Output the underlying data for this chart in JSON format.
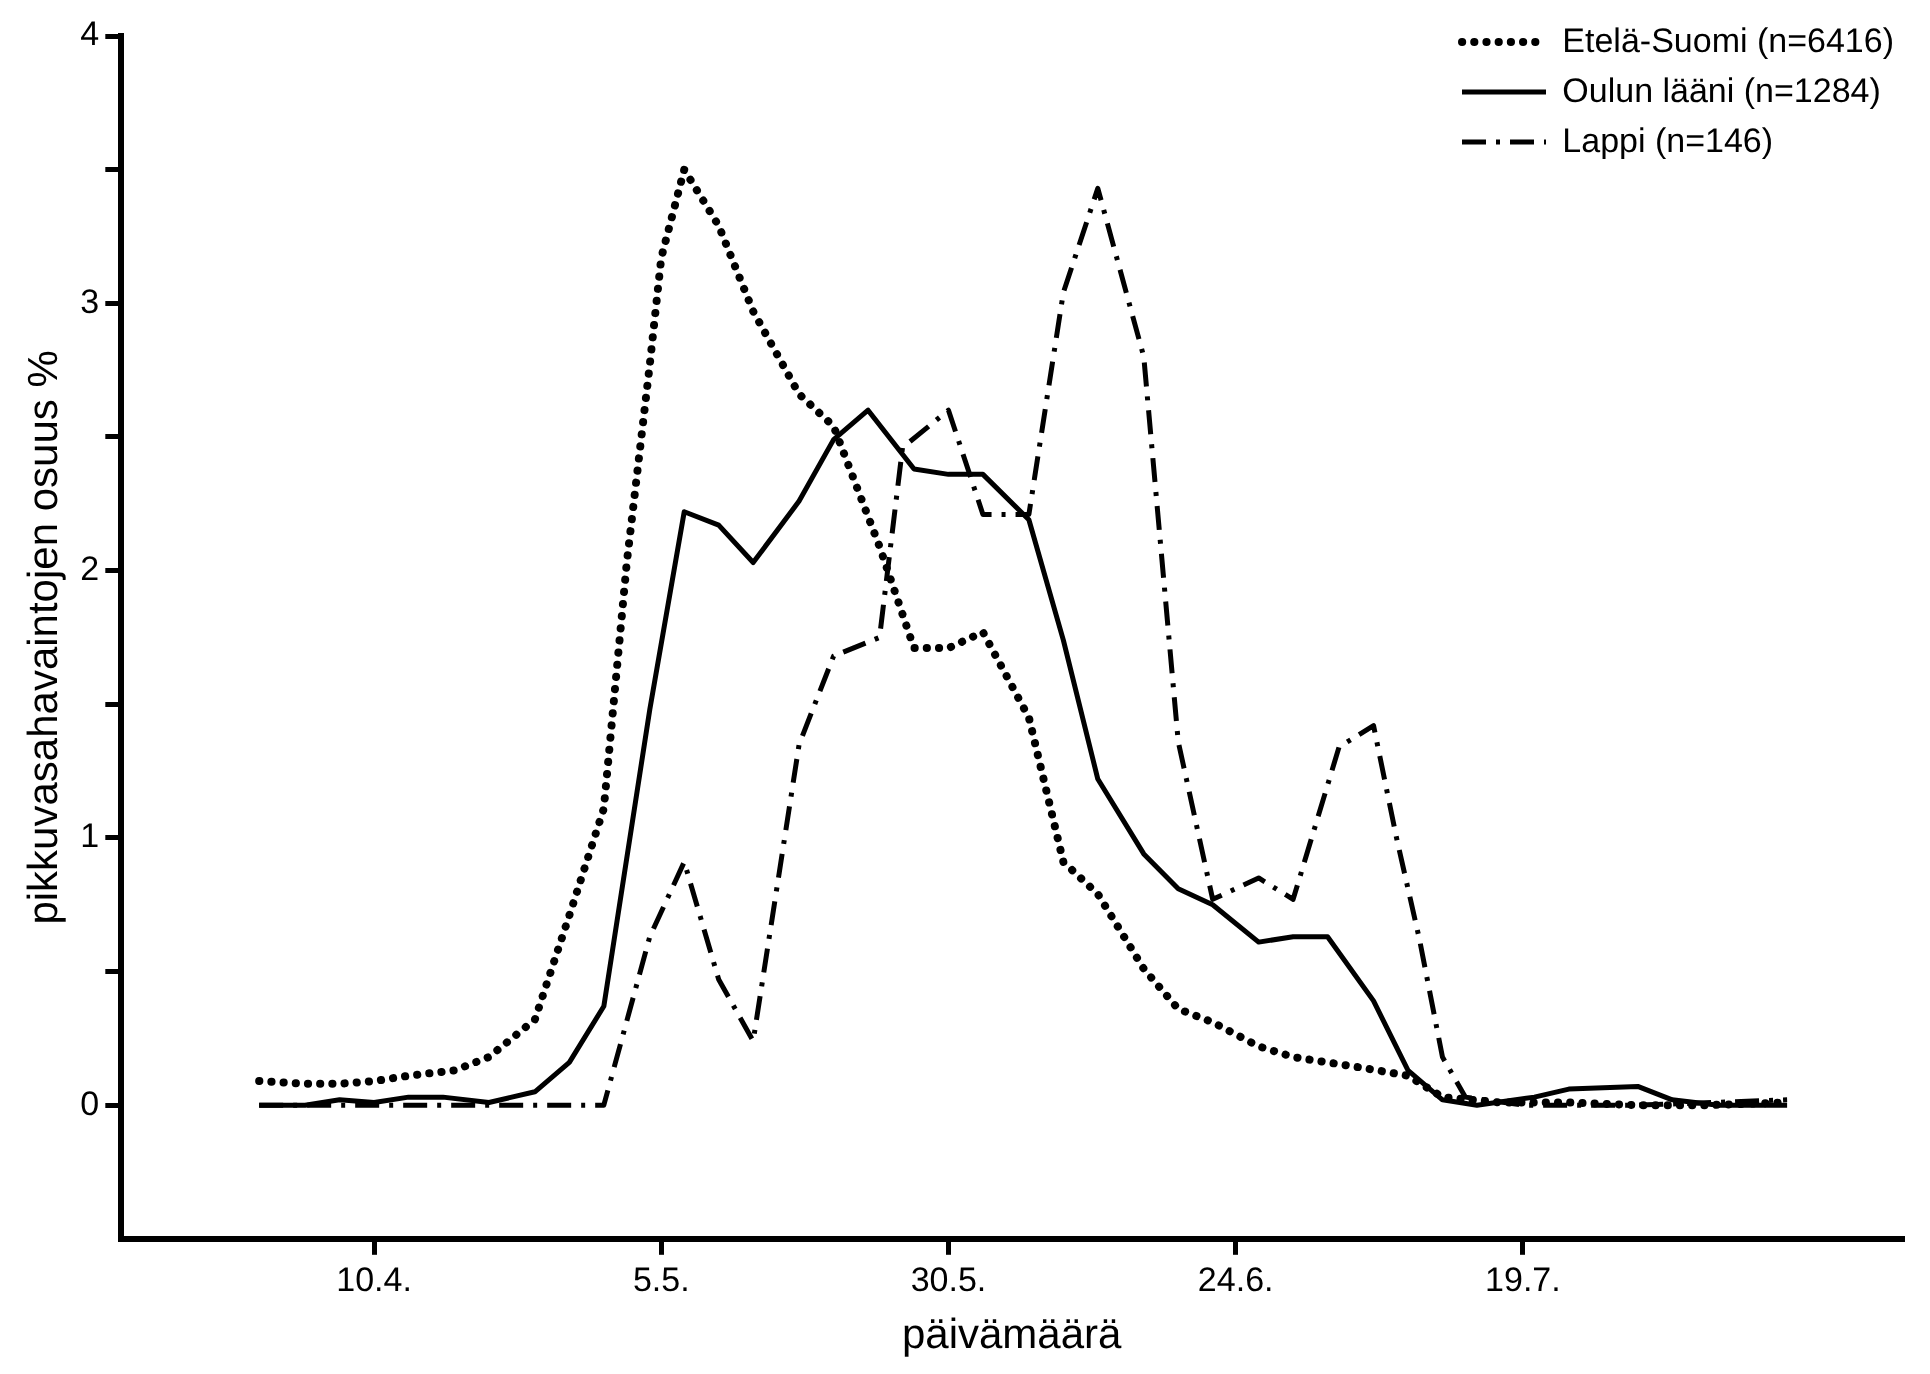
{
  "chart_data": {
    "type": "line",
    "xlabel": "päivämäärä",
    "ylabel": "pikkuvasahavaintojen osuus %",
    "xlim": [
      "--03-19",
      "--08-21"
    ],
    "xticks": [
      {
        "value": "--04-10",
        "label": "10.4."
      },
      {
        "value": "--05-05",
        "label": "5.5."
      },
      {
        "value": "--05-30",
        "label": "30.5."
      },
      {
        "value": "--06-24",
        "label": "24.6."
      },
      {
        "value": "--07-19",
        "label": "19.7."
      }
    ],
    "ylim": [
      -0.5,
      4
    ],
    "yticks": [
      0,
      {
        "value": 0.5,
        "label": null
      },
      1,
      {
        "value": 1.5,
        "label": null
      },
      2,
      {
        "value": 2.5,
        "label": null
      },
      3,
      {
        "value": 3.5,
        "label": null
      },
      4
    ],
    "grid": false,
    "legend": "top right",
    "marker": "none",
    "series": [
      {
        "name": "Etelä-Suomi (n=6416)",
        "color": "#000000",
        "line_style": "dotted",
        "x": [
          "--03-31",
          "--04-04",
          "--04-07",
          "--04-10",
          "--04-13",
          "--04-17",
          "--04-20",
          "--04-24",
          "--04-27",
          "--04-30",
          "--05-02",
          "--05-04",
          "--05-05",
          "--05-07",
          "--05-10",
          "--05-13",
          "--05-17",
          "--05-20",
          "--05-24",
          "--05-27",
          "--05-30",
          "--06-02",
          "--06-06",
          "--06-09",
          "--06-12",
          "--06-16",
          "--06-19",
          "--06-22",
          "--06-26",
          "--06-29",
          "--07-02",
          "--07-05",
          "--07-09",
          "--07-12",
          "--07-17",
          "--07-23",
          "--07-29",
          "--08-04",
          "--08-11"
        ],
        "values": [
          0.09,
          0.08,
          0.08,
          0.09,
          0.11,
          0.13,
          0.18,
          0.32,
          0.71,
          1.11,
          2.03,
          2.77,
          3.17,
          3.5,
          3.29,
          2.97,
          2.66,
          2.54,
          2.09,
          1.71,
          1.71,
          1.77,
          1.45,
          0.91,
          0.79,
          0.51,
          0.36,
          0.31,
          0.22,
          0.18,
          0.16,
          0.14,
          0.11,
          0.03,
          0.01,
          0.01,
          0,
          0,
          0.01
        ]
      },
      {
        "name": "Oulun lääni (n=1284)",
        "color": "#000000",
        "line_style": "solid",
        "x": [
          "--03-31",
          "--04-04",
          "--04-07",
          "--04-10",
          "--04-13",
          "--04-16",
          "--04-20",
          "--04-24",
          "--04-27",
          "--04-30",
          "--05-04",
          "--05-07",
          "--05-10",
          "--05-13",
          "--05-17",
          "--05-20",
          "--05-23",
          "--05-27",
          "--05-30",
          "--06-02",
          "--06-06",
          "--06-09",
          "--06-12",
          "--06-16",
          "--06-19",
          "--06-22",
          "--06-26",
          "--06-29",
          "--07-02",
          "--07-06",
          "--07-09",
          "--07-12",
          "--07-15",
          "--07-20",
          "--07-23",
          "--07-29",
          "--08-01",
          "--08-05",
          "--08-11"
        ],
        "values": [
          0,
          0,
          0.02,
          0.01,
          0.03,
          0.03,
          0.01,
          0.05,
          0.16,
          0.37,
          1.48,
          2.22,
          2.17,
          2.03,
          2.26,
          2.49,
          2.6,
          2.38,
          2.36,
          2.36,
          2.19,
          1.74,
          1.22,
          0.94,
          0.81,
          0.75,
          0.61,
          0.63,
          0.63,
          0.39,
          0.13,
          0.02,
          0,
          0.03,
          0.06,
          0.07,
          0.02,
          0,
          0
        ]
      },
      {
        "name": "Lappi (n=146)",
        "color": "#000000",
        "line_style": "dashed",
        "x": [
          "--03-31",
          "--04-10",
          "--04-20",
          "--04-30",
          "--05-04",
          "--05-07",
          "--05-10",
          "--05-13",
          "--05-17",
          "--05-20",
          "--05-24",
          "--05-26",
          "--05-30",
          "--06-02",
          "--06-06",
          "--06-09",
          "--06-12",
          "--06-16",
          "--06-19",
          "--06-22",
          "--06-26",
          "--06-29",
          "--07-03",
          "--07-06",
          "--07-08",
          "--07-10",
          "--07-12",
          "--07-14",
          "--07-19",
          "--07-29",
          "--08-11"
        ],
        "values": [
          0,
          0,
          0,
          0,
          0.63,
          0.91,
          0.47,
          0.24,
          1.35,
          1.68,
          1.75,
          2.46,
          2.6,
          2.21,
          2.21,
          3.04,
          3.43,
          2.8,
          1.36,
          0.77,
          0.85,
          0.77,
          1.34,
          1.42,
          1,
          0.62,
          0.18,
          0.03,
          0,
          0,
          0.02
        ]
      }
    ]
  }
}
